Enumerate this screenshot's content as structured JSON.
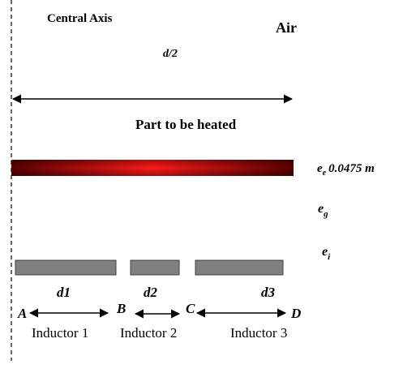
{
  "labels": {
    "central_axis": "Central Axis",
    "air": "Air",
    "half_width": "d/2",
    "part": "Part to be heated"
  },
  "thicknesses": [
    {
      "symbol": "e",
      "subscript": "e",
      "value": "0.0475 m"
    },
    {
      "symbol": "e",
      "subscript": "g"
    },
    {
      "symbol": "e",
      "subscript": "i"
    }
  ],
  "gaps": [
    "d1",
    "d2",
    "d3"
  ],
  "points": [
    "A",
    "B",
    "C",
    "D"
  ],
  "inductors": [
    "Inductor 1",
    "Inductor 2",
    "Inductor 3"
  ]
}
